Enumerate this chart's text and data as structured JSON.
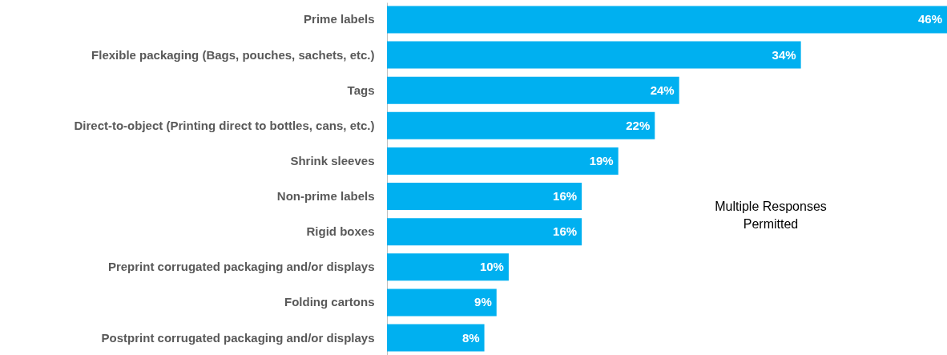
{
  "chart_data": {
    "type": "bar",
    "orientation": "horizontal",
    "categories": [
      "Prime labels",
      "Flexible packaging (Bags, pouches, sachets, etc.)",
      "Tags",
      "Direct-to-object (Printing direct to bottles, cans, etc.)",
      "Shrink sleeves",
      "Non-prime labels",
      "Rigid boxes",
      "Preprint corrugated packaging and/or displays",
      "Folding cartons",
      "Postprint corrugated packaging and/or displays"
    ],
    "values": [
      46,
      34,
      24,
      22,
      19,
      16,
      16,
      10,
      9,
      8
    ],
    "value_labels": [
      "46%",
      "34%",
      "24%",
      "22%",
      "19%",
      "16%",
      "16%",
      "10%",
      "9%",
      "8%"
    ],
    "color": "#00b0f0",
    "annotations": [
      "Multiple Responses Permitted"
    ]
  }
}
